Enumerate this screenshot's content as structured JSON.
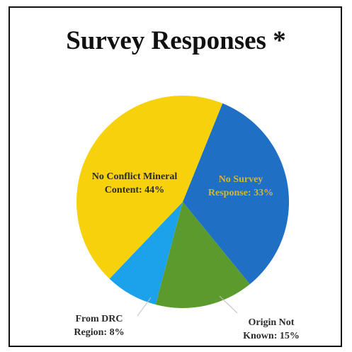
{
  "chart_data": {
    "type": "pie",
    "title": "Survey Responses *",
    "slices": [
      {
        "label_lines": [
          "No Survey",
          "Response: 33%"
        ],
        "value": 33,
        "color": "#1f6fc4",
        "label_color": "#d4b82a"
      },
      {
        "label_lines": [
          "Origin Not",
          "Known: 15%"
        ],
        "value": 15,
        "color": "#5b9a2c",
        "label_color": "#2b2b2b"
      },
      {
        "label_lines": [
          "From DRC",
          "Region: 8%"
        ],
        "value": 8,
        "color": "#1ca2ea",
        "label_color": "#2b2b2b"
      },
      {
        "label_lines": [
          "No Conflict Mineral",
          "Content: 44%"
        ],
        "value": 44,
        "color": "#f7d20c",
        "label_color": "#2b2b2b"
      }
    ]
  }
}
